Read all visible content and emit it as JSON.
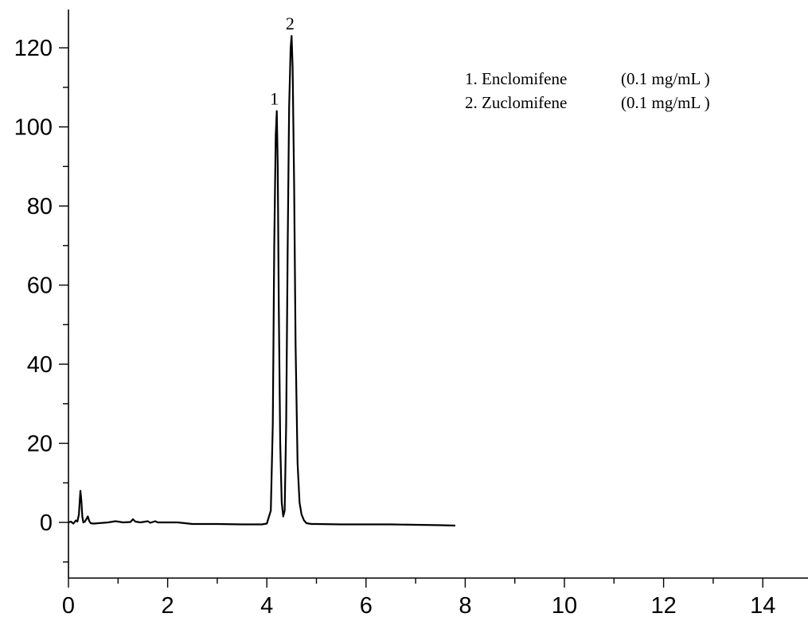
{
  "chart_data": {
    "type": "line",
    "title": "",
    "xlabel": "",
    "ylabel": "",
    "xlim": [
      0,
      15
    ],
    "ylim": [
      -14,
      130
    ],
    "x_ticks": [
      0,
      2,
      4,
      6,
      8,
      10,
      12,
      14
    ],
    "y_ticks": [
      0,
      20,
      40,
      60,
      80,
      100,
      120
    ],
    "x_minor_step": 1,
    "y_minor_step": 10,
    "grid": false,
    "series": [
      {
        "name": "",
        "color": "#000000",
        "x": [
          0.0,
          0.05,
          0.1,
          0.15,
          0.18,
          0.21,
          0.24,
          0.26,
          0.28,
          0.3,
          0.33,
          0.36,
          0.39,
          0.42,
          0.45,
          0.5,
          0.6,
          0.8,
          0.95,
          1.1,
          1.25,
          1.3,
          1.35,
          1.45,
          1.6,
          1.65,
          1.75,
          1.8,
          2.0,
          2.2,
          2.5,
          3.0,
          3.5,
          3.9,
          4.0,
          4.08,
          4.12,
          4.15,
          4.18,
          4.2,
          4.22,
          4.24,
          4.27,
          4.3,
          4.33,
          4.36,
          4.39,
          4.42,
          4.45,
          4.48,
          4.5,
          4.52,
          4.55,
          4.58,
          4.62,
          4.66,
          4.7,
          4.75,
          4.8,
          4.9,
          5.0,
          5.5,
          6.0,
          6.5,
          7.0,
          7.5,
          7.8
        ],
        "y": [
          0.0,
          0.2,
          -0.3,
          0.5,
          0.2,
          2.0,
          8.0,
          5.5,
          1.5,
          0.0,
          0.2,
          0.8,
          1.5,
          0.3,
          -0.2,
          -0.3,
          -0.2,
          0.0,
          0.3,
          0.0,
          0.1,
          0.8,
          0.2,
          0.0,
          0.3,
          -0.1,
          0.3,
          0.0,
          0.0,
          0.0,
          -0.4,
          -0.4,
          -0.5,
          -0.5,
          -0.3,
          3.0,
          25.0,
          70.0,
          98.0,
          104.0,
          90.0,
          55.0,
          20.0,
          5.0,
          1.5,
          3.0,
          25.0,
          70.0,
          105.0,
          120.0,
          123.0,
          115.0,
          85.0,
          45.0,
          15.0,
          5.0,
          2.0,
          0.5,
          -0.2,
          -0.4,
          -0.4,
          -0.5,
          -0.5,
          -0.5,
          -0.6,
          -0.7,
          -0.8
        ]
      }
    ],
    "peaks": [
      {
        "label": "1",
        "x": 4.2,
        "y": 104
      },
      {
        "label": "2",
        "x": 4.5,
        "y": 123
      }
    ],
    "legend": [
      {
        "name": "1. Enclomifene",
        "conc": "(0.1 mg/mL )"
      },
      {
        "name": "2. Zuclomifene",
        "conc": "(0.1 mg/mL )"
      }
    ]
  }
}
